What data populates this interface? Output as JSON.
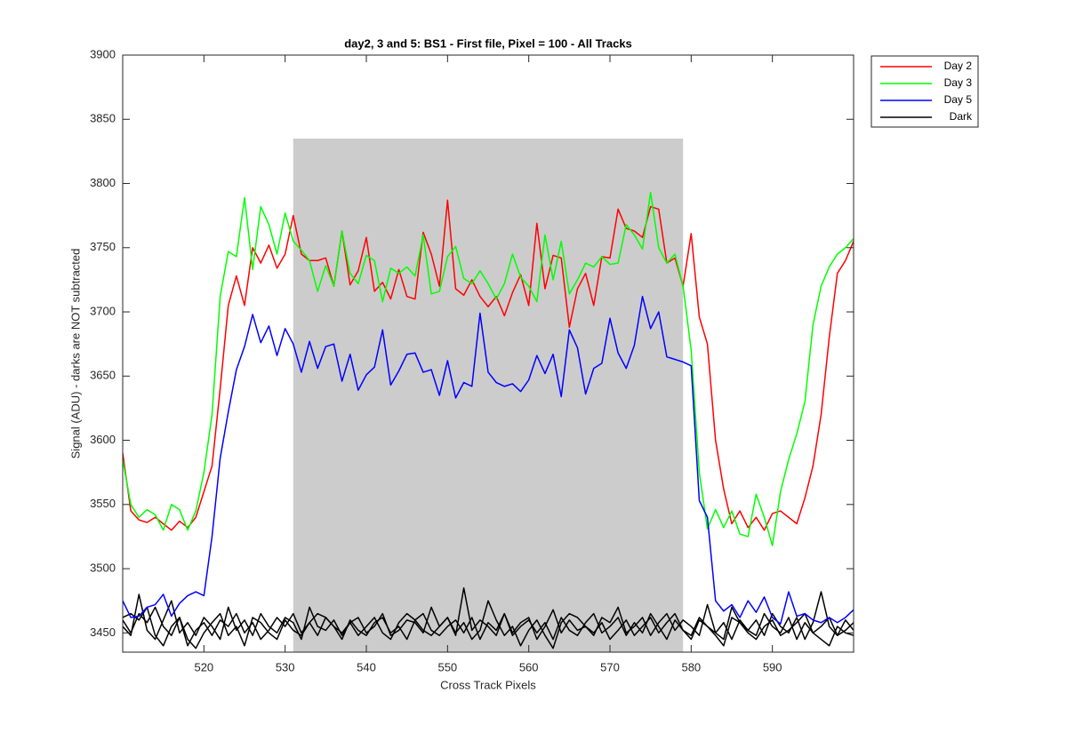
{
  "chart_data": {
    "type": "line",
    "title": "day2, 3 and 5: BS1 - First file, Pixel = 100 - All Tracks",
    "xlabel": "Cross Track Pixels",
    "ylabel": "Signal (ADU) - darks are NOT subtracted",
    "xlim": [
      510,
      600
    ],
    "ylim": [
      3435,
      3900
    ],
    "xticks": [
      520,
      530,
      540,
      550,
      560,
      570,
      580,
      590
    ],
    "yticks": [
      3450,
      3500,
      3550,
      3600,
      3650,
      3700,
      3750,
      3800,
      3850,
      3900
    ],
    "legend": "outside-top-right",
    "shaded_region": {
      "x": [
        531,
        579
      ],
      "y_top": 3835,
      "color": "#cccccc"
    },
    "x": [
      510,
      511,
      512,
      513,
      514,
      515,
      516,
      517,
      518,
      519,
      520,
      521,
      522,
      523,
      524,
      525,
      526,
      527,
      528,
      529,
      530,
      531,
      532,
      533,
      534,
      535,
      536,
      537,
      538,
      539,
      540,
      541,
      542,
      543,
      544,
      545,
      546,
      547,
      548,
      549,
      550,
      551,
      552,
      553,
      554,
      555,
      556,
      557,
      558,
      559,
      560,
      561,
      562,
      563,
      564,
      565,
      566,
      567,
      568,
      569,
      570,
      571,
      572,
      573,
      574,
      575,
      576,
      577,
      578,
      579,
      580,
      581,
      582,
      583,
      584,
      585,
      586,
      587,
      588,
      589,
      590,
      591,
      592,
      593,
      594,
      595,
      596,
      597,
      598,
      599,
      600
    ],
    "series": [
      {
        "name": "Day 2",
        "color": "#ff0000",
        "values": [
          3590,
          3545,
          3538,
          3536,
          3540,
          3535,
          3530,
          3537,
          3532,
          3540,
          3560,
          3580,
          3640,
          3705,
          3728,
          3705,
          3750,
          3738,
          3752,
          3734,
          3745,
          3775,
          3745,
          3740,
          3740,
          3742,
          3720,
          3763,
          3721,
          3732,
          3758,
          3716,
          3723,
          3710,
          3733,
          3712,
          3710,
          3762,
          3745,
          3720,
          3787,
          3718,
          3713,
          3725,
          3712,
          3704,
          3712,
          3697,
          3715,
          3729,
          3705,
          3769,
          3718,
          3744,
          3742,
          3688,
          3718,
          3730,
          3705,
          3743,
          3742,
          3780,
          3765,
          3763,
          3758,
          3782,
          3780,
          3738,
          3742,
          3720,
          3761,
          3696,
          3675,
          3600,
          3562,
          3535,
          3545,
          3532,
          3540,
          3530,
          3543,
          3545,
          3540,
          3535,
          3555,
          3580,
          3620,
          3680,
          3730,
          3740,
          3755
        ]
      },
      {
        "name": "Day 3",
        "color": "#00ff00",
        "values": [
          3585,
          3550,
          3540,
          3546,
          3542,
          3530,
          3550,
          3546,
          3530,
          3545,
          3575,
          3620,
          3712,
          3747,
          3743,
          3789,
          3733,
          3782,
          3768,
          3745,
          3777,
          3755,
          3748,
          3740,
          3716,
          3736,
          3720,
          3763,
          3730,
          3722,
          3744,
          3740,
          3708,
          3734,
          3730,
          3735,
          3728,
          3760,
          3714,
          3716,
          3743,
          3751,
          3726,
          3722,
          3732,
          3722,
          3710,
          3722,
          3745,
          3727,
          3720,
          3708,
          3760,
          3725,
          3755,
          3714,
          3725,
          3738,
          3735,
          3743,
          3737,
          3738,
          3768,
          3760,
          3749,
          3793,
          3750,
          3738,
          3745,
          3720,
          3670,
          3575,
          3531,
          3546,
          3532,
          3545,
          3527,
          3525,
          3558,
          3540,
          3518,
          3560,
          3585,
          3605,
          3630,
          3690,
          3720,
          3735,
          3745,
          3750,
          3757
        ]
      },
      {
        "name": "Day 5",
        "color": "#0000ff",
        "values": [
          3475,
          3462,
          3463,
          3470,
          3472,
          3480,
          3463,
          3473,
          3479,
          3482,
          3479,
          3525,
          3586,
          3622,
          3655,
          3673,
          3698,
          3676,
          3689,
          3666,
          3687,
          3675,
          3653,
          3677,
          3656,
          3673,
          3675,
          3646,
          3667,
          3639,
          3651,
          3657,
          3686,
          3643,
          3654,
          3667,
          3668,
          3653,
          3655,
          3635,
          3662,
          3633,
          3645,
          3642,
          3699,
          3653,
          3645,
          3642,
          3644,
          3638,
          3647,
          3666,
          3652,
          3667,
          3634,
          3686,
          3672,
          3636,
          3656,
          3660,
          3695,
          3668,
          3656,
          3674,
          3712,
          3687,
          3700,
          3665,
          3663,
          3661,
          3658,
          3553,
          3540,
          3475,
          3467,
          3472,
          3462,
          3475,
          3466,
          3478,
          3462,
          3457,
          3482,
          3463,
          3465,
          3460,
          3458,
          3462,
          3458,
          3462,
          3468
        ]
      }
    ],
    "dark": {
      "name": "Dark",
      "color": "#000000",
      "tracks": [
        [
          3455,
          3448,
          3480,
          3452,
          3445,
          3460,
          3475,
          3450,
          3458,
          3448,
          3462,
          3455,
          3445,
          3470,
          3452,
          3460,
          3448,
          3465,
          3455,
          3450,
          3462,
          3458,
          3445,
          3470,
          3455,
          3452,
          3460,
          3448,
          3458,
          3462,
          3450,
          3455,
          3465,
          3448,
          3452,
          3460,
          3458,
          3450,
          3470,
          3455,
          3462,
          3448,
          3485,
          3452,
          3460,
          3455,
          3448,
          3465,
          3450,
          3458,
          3462,
          3445,
          3455,
          3468,
          3450,
          3460,
          3452,
          3455,
          3448,
          3462,
          3458,
          3470,
          3450,
          3455,
          3462,
          3448,
          3458,
          3465,
          3452,
          3460,
          3455,
          3448,
          3472,
          3450,
          3445,
          3470,
          3458,
          3452,
          3460,
          3448,
          3465,
          3455,
          3450,
          3462,
          3445,
          3458,
          3482,
          3455,
          3448,
          3460,
          3452
        ],
        [
          3462,
          3465,
          3460,
          3470,
          3448,
          3440,
          3455,
          3462,
          3445,
          3438,
          3450,
          3458,
          3465,
          3448,
          3455,
          3440,
          3462,
          3458,
          3450,
          3445,
          3460,
          3452,
          3448,
          3458,
          3465,
          3462,
          3455,
          3450,
          3458,
          3448,
          3455,
          3462,
          3450,
          3445,
          3458,
          3465,
          3460,
          3452,
          3448,
          3455,
          3462,
          3450,
          3458,
          3445,
          3452,
          3475,
          3460,
          3448,
          3455,
          3440,
          3452,
          3460,
          3448,
          3438,
          3458,
          3465,
          3462,
          3455,
          3450,
          3458,
          3445,
          3452,
          3460,
          3448,
          3455,
          3462,
          3450,
          3458,
          3465,
          3452,
          3445,
          3460,
          3455,
          3448,
          3440,
          3462,
          3458,
          3450,
          3445,
          3455,
          3460,
          3448,
          3452,
          3458,
          3465,
          3450,
          3445,
          3440,
          3455,
          3450,
          3448
        ],
        [
          3460,
          3450,
          3465,
          3458,
          3470,
          3455,
          3448,
          3462,
          3440,
          3452,
          3458,
          3448,
          3460,
          3455,
          3465,
          3450,
          3458,
          3445,
          3452,
          3462,
          3455,
          3465,
          3450,
          3458,
          3448,
          3462,
          3455,
          3445,
          3460,
          3452,
          3448,
          3458,
          3462,
          3450,
          3455,
          3445,
          3460,
          3465,
          3452,
          3448,
          3455,
          3460,
          3450,
          3462,
          3445,
          3458,
          3452,
          3465,
          3448,
          3455,
          3460,
          3450,
          3458,
          3445,
          3462,
          3452,
          3448,
          3458,
          3465,
          3450,
          3455,
          3462,
          3448,
          3458,
          3450,
          3465,
          3455,
          3445,
          3460,
          3452,
          3448,
          3462,
          3455,
          3450,
          3458,
          3445,
          3460,
          3452,
          3448,
          3465,
          3455,
          3450,
          3462,
          3445,
          3458,
          3450,
          3455,
          3462,
          3448,
          3452,
          3458
        ]
      ]
    }
  }
}
